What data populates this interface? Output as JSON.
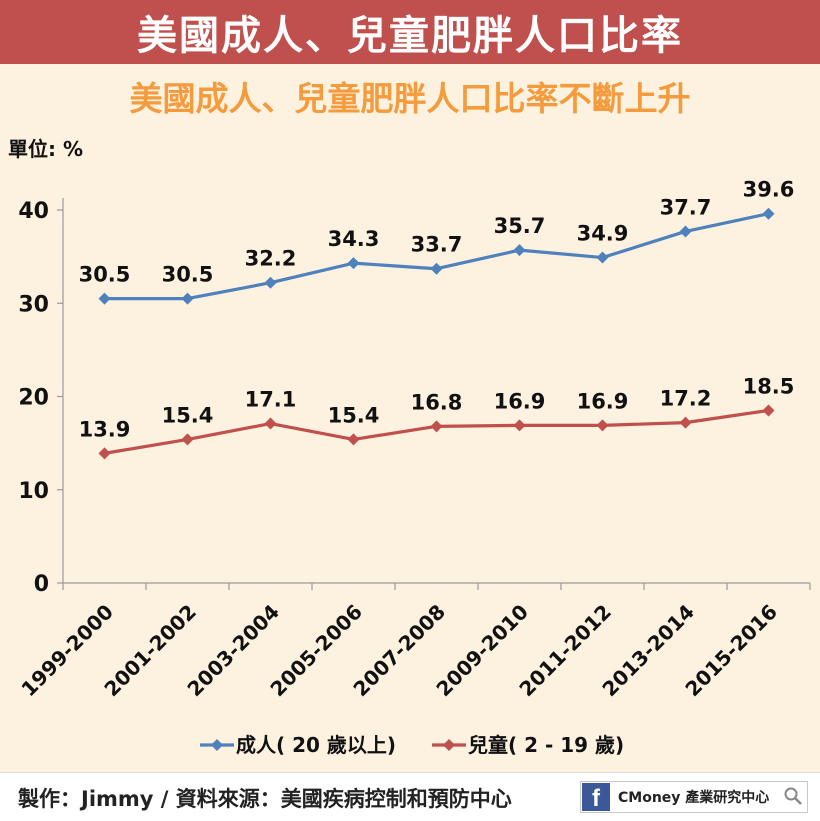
{
  "header": {
    "banner_title": "美國成人、兒童肥胖人口比率",
    "subtitle": "美國成人、兒童肥胖人口比率不斷上升",
    "unit_label": "單位: %"
  },
  "footer": {
    "credit": "製作：Jimmy / 資料來源：美國疾病控制和預防中心",
    "brand_text": "CMoney 產業研究中心",
    "fb_letter": "f"
  },
  "colors": {
    "banner": "#c0504d",
    "subtitle": "#f39b3d",
    "background": "#fdf1e0",
    "series_adult": "#4f81bd",
    "series_child": "#c0504d"
  },
  "chart_data": {
    "type": "line",
    "categories": [
      "1999-2000",
      "2001-2002",
      "2003-2004",
      "2005-2006",
      "2007-2008",
      "2009-2010",
      "2011-2012",
      "2013-2014",
      "2015-2016"
    ],
    "series": [
      {
        "name": "成人( 20 歲以上)",
        "values": [
          30.5,
          30.5,
          32.2,
          34.3,
          33.7,
          35.7,
          34.9,
          37.7,
          39.6
        ],
        "color": "#4f81bd"
      },
      {
        "name": "兒童( 2 - 19 歲)",
        "values": [
          13.9,
          15.4,
          17.1,
          15.4,
          16.8,
          16.9,
          16.9,
          17.2,
          18.5
        ],
        "color": "#c0504d"
      }
    ],
    "ylim": [
      0,
      40
    ],
    "yticks": [
      "0",
      "10",
      "20",
      "30",
      "40"
    ],
    "grid": false,
    "legend": "bottom",
    "marker": "diamond",
    "data_labels": true
  }
}
